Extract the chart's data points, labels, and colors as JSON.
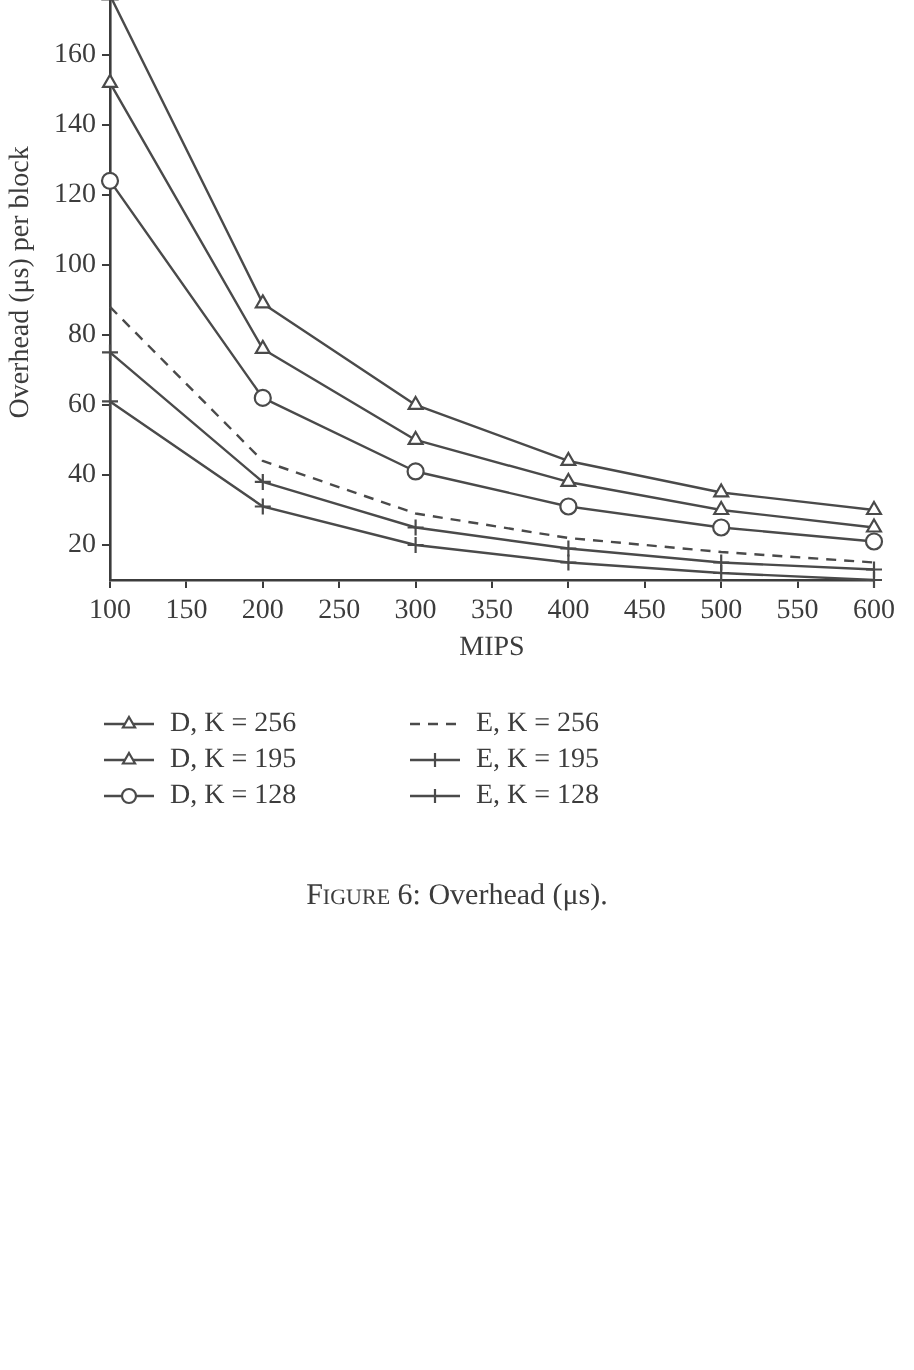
{
  "chart_data": {
    "type": "line",
    "x": [
      100,
      200,
      300,
      400,
      500,
      600
    ],
    "xlabel": "MIPS",
    "ylabel": "Overhead (μs) per block",
    "xlim": [
      100,
      600
    ],
    "xticks": [
      100,
      150,
      200,
      250,
      300,
      350,
      400,
      450,
      500,
      550,
      600
    ],
    "ylim": [
      10,
      180
    ],
    "yticks": [
      20,
      40,
      60,
      80,
      100,
      120,
      140,
      160
    ],
    "legend": "bottom",
    "line_style": "solid",
    "series": [
      {
        "name": "D, K = 256",
        "color": "#4a4a4a",
        "marker": "triangle",
        "values": [
          177,
          89,
          60,
          44,
          35,
          30
        ]
      },
      {
        "name": "D, K = 195",
        "color": "#4a4a4a",
        "marker": "triangle",
        "values": [
          152,
          76,
          50,
          38,
          30,
          25
        ]
      },
      {
        "name": "D, K = 128",
        "color": "#4a4a4a",
        "marker": "circle",
        "values": [
          124,
          62,
          41,
          31,
          25,
          21
        ]
      },
      {
        "name": "E, K = 256",
        "color": "#4a4a4a",
        "marker": "none",
        "line_style": "dashed",
        "values": [
          88,
          44,
          29,
          22,
          18,
          15
        ]
      },
      {
        "name": "E, K = 195",
        "color": "#4a4a4a",
        "marker": "cross",
        "values": [
          75,
          38,
          25,
          19,
          15,
          13
        ]
      },
      {
        "name": "E, K = 128",
        "color": "#4a4a4a",
        "marker": "cross",
        "values": [
          61,
          31,
          20,
          15,
          12,
          10
        ]
      }
    ],
    "annotations": [
      "Figure 6: Overhead (μs)."
    ]
  }
}
